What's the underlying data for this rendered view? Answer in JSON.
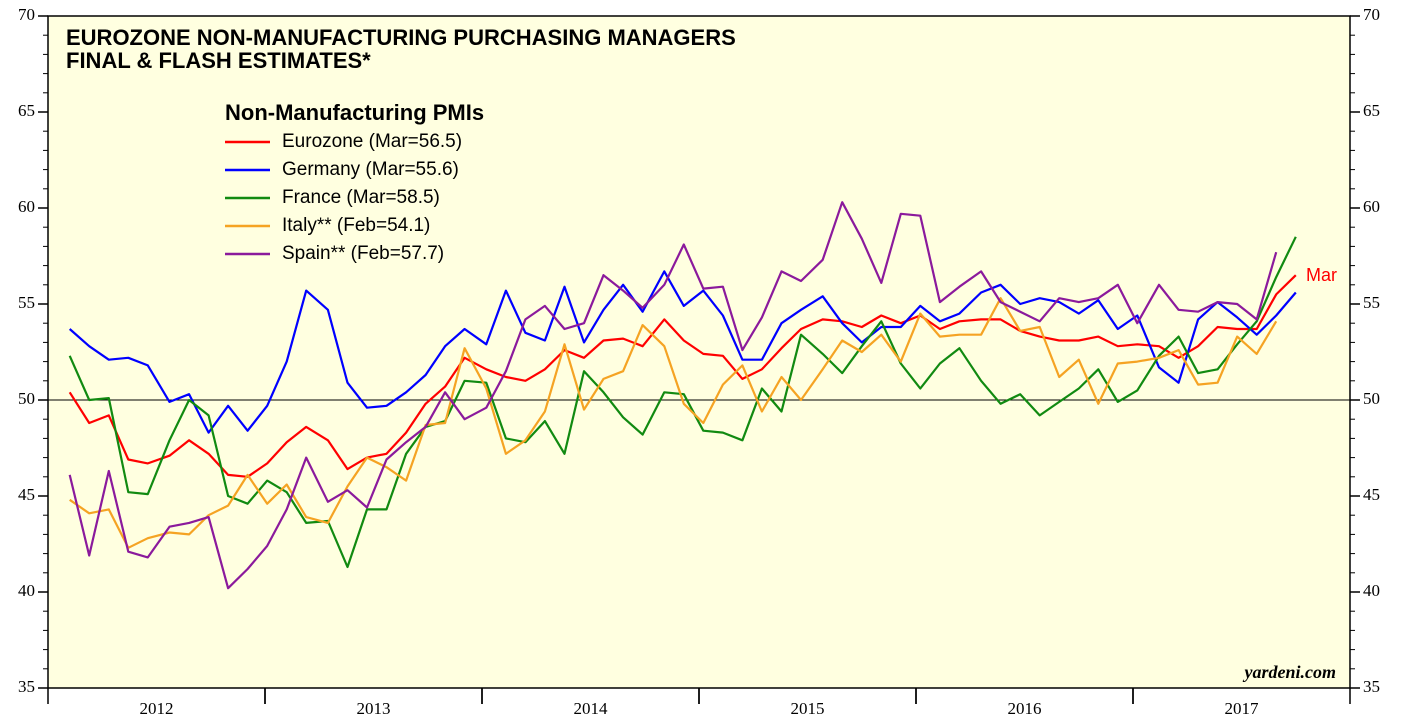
{
  "chart_data": {
    "type": "line",
    "title": "EUROZONE NON-MANUFACTURING PURCHASING MANAGERS",
    "subtitle": "FINAL & FLASH ESTIMATES*",
    "legend_title": "Non-Manufacturing PMIs",
    "annotations": [
      "Mar",
      "yardeni.com"
    ],
    "xlim": [
      2012,
      2018
    ],
    "xticks": [
      {
        "value": 2012.5,
        "label": "2012"
      },
      {
        "value": 2013.5,
        "label": "2013"
      },
      {
        "value": 2014.5,
        "label": "2014"
      },
      {
        "value": 2015.5,
        "label": "2015"
      },
      {
        "value": 2016.5,
        "label": "2016"
      },
      {
        "value": 2017.5,
        "label": "2017"
      }
    ],
    "ylim": [
      35,
      70
    ],
    "yticks": [
      35,
      40,
      45,
      50,
      55,
      60,
      65,
      70
    ],
    "reference_line": 50,
    "x": [
      2012.1,
      2012.19,
      2012.28,
      2012.37,
      2012.46,
      2012.56,
      2012.65,
      2012.74,
      2012.83,
      2012.92,
      2013.01,
      2013.1,
      2013.19,
      2013.29,
      2013.38,
      2013.47,
      2013.56,
      2013.65,
      2013.74,
      2013.83,
      2013.92,
      2014.02,
      2014.11,
      2014.2,
      2014.29,
      2014.38,
      2014.47,
      2014.56,
      2014.65,
      2014.74,
      2014.84,
      2014.93,
      2015.02,
      2015.11,
      2015.2,
      2015.29,
      2015.38,
      2015.47,
      2015.57,
      2015.66,
      2015.75,
      2015.84,
      2015.93,
      2016.02,
      2016.11,
      2016.2,
      2016.3,
      2016.39,
      2016.48,
      2016.57,
      2016.66,
      2016.75,
      2016.84,
      2016.93,
      2017.02,
      2017.12,
      2017.21,
      2017.3,
      2017.39,
      2017.48,
      2017.57,
      2017.66,
      2017.75
    ],
    "series": [
      {
        "name": "Eurozone (Mar=56.5)",
        "color": "#ff0000",
        "values": [
          50.4,
          48.8,
          49.2,
          46.9,
          46.7,
          47.1,
          47.9,
          47.2,
          46.1,
          46.0,
          46.7,
          47.8,
          48.6,
          47.9,
          46.4,
          47.0,
          47.2,
          48.3,
          49.8,
          50.7,
          52.2,
          51.6,
          51.2,
          51.0,
          51.6,
          52.6,
          52.2,
          53.1,
          53.2,
          52.8,
          54.2,
          53.1,
          52.4,
          52.3,
          51.1,
          51.6,
          52.7,
          53.7,
          54.2,
          54.1,
          53.8,
          54.4,
          54.0,
          54.4,
          53.7,
          54.1,
          54.2,
          54.2,
          53.6,
          53.3,
          53.1,
          53.1,
          53.3,
          52.8,
          52.9,
          52.8,
          52.2,
          52.8,
          53.8,
          53.7,
          53.7,
          55.5,
          56.5
        ]
      },
      {
        "name": "Germany (Mar=55.6)",
        "color": "#0000ff",
        "values": [
          53.7,
          52.8,
          52.1,
          52.2,
          51.8,
          49.9,
          50.3,
          48.3,
          49.7,
          48.4,
          49.7,
          52.0,
          55.7,
          54.7,
          50.9,
          49.6,
          49.7,
          50.4,
          51.3,
          52.8,
          53.7,
          52.9,
          55.7,
          53.5,
          53.1,
          55.9,
          53.0,
          54.7,
          56.0,
          54.6,
          56.7,
          54.9,
          55.7,
          54.4,
          52.1,
          52.1,
          54.0,
          54.7,
          55.4,
          54.0,
          53.0,
          53.8,
          53.8,
          54.9,
          54.1,
          54.5,
          55.6,
          56.0,
          55.0,
          55.3,
          55.1,
          54.5,
          55.2,
          53.7,
          54.4,
          51.7,
          50.9,
          54.2,
          55.1,
          54.3,
          53.4,
          54.4,
          55.6
        ]
      },
      {
        "name": "France (Mar=58.5)",
        "color": "#118a11",
        "values": [
          52.3,
          50.0,
          50.1,
          45.2,
          45.1,
          47.9,
          50.0,
          49.2,
          45.0,
          44.6,
          45.8,
          45.2,
          43.6,
          43.7,
          41.3,
          44.3,
          44.3,
          47.2,
          48.6,
          48.9,
          51.0,
          50.9,
          48.0,
          47.8,
          48.9,
          47.2,
          51.5,
          50.4,
          49.1,
          48.2,
          50.4,
          50.3,
          48.4,
          48.3,
          47.9,
          50.6,
          49.4,
          53.4,
          52.4,
          51.4,
          52.8,
          54.1,
          51.9,
          50.6,
          51.9,
          52.7,
          51.0,
          49.8,
          50.3,
          49.2,
          49.9,
          50.6,
          51.6,
          49.9,
          50.5,
          52.3,
          53.3,
          51.4,
          51.6,
          52.9,
          54.1,
          56.4,
          58.5
        ]
      },
      {
        "name": "Italy** (Feb=54.1)",
        "color": "#f5a323",
        "values": [
          44.8,
          44.1,
          44.3,
          42.3,
          42.8,
          43.1,
          43.0,
          44.0,
          44.5,
          46.1,
          44.6,
          45.6,
          43.9,
          43.6,
          45.5,
          47.0,
          46.5,
          45.8,
          48.7,
          48.8,
          52.7,
          50.6,
          47.2,
          47.9,
          49.4,
          52.9,
          49.5,
          51.1,
          51.5,
          53.9,
          52.8,
          49.8,
          48.8,
          50.8,
          51.8,
          49.4,
          51.2,
          50.0,
          51.6,
          53.1,
          52.5,
          53.4,
          52.0,
          54.5,
          53.3,
          53.4,
          53.4,
          55.3,
          53.6,
          53.8,
          51.2,
          52.1,
          49.8,
          51.9,
          52.0,
          52.2,
          52.6,
          50.8,
          50.9,
          53.3,
          52.4,
          54.1,
          null
        ]
      },
      {
        "name": "Spain** (Feb=57.7)",
        "color": "#8b1a9c",
        "values": [
          46.1,
          41.9,
          46.3,
          42.1,
          41.8,
          43.4,
          43.6,
          43.9,
          40.2,
          41.2,
          42.4,
          44.3,
          47.0,
          44.7,
          45.3,
          44.4,
          46.9,
          47.8,
          48.6,
          50.4,
          49.0,
          49.6,
          51.5,
          54.2,
          54.9,
          53.7,
          54.0,
          56.5,
          55.7,
          54.8,
          56.0,
          58.1,
          55.8,
          55.9,
          52.6,
          54.3,
          56.7,
          56.2,
          57.3,
          60.3,
          58.4,
          56.1,
          59.7,
          59.6,
          55.1,
          55.9,
          56.7,
          55.1,
          54.6,
          54.1,
          55.3,
          55.1,
          55.3,
          56.0,
          54.0,
          56.0,
          54.7,
          54.6,
          55.1,
          55.0,
          54.2,
          57.7,
          null
        ]
      }
    ]
  }
}
